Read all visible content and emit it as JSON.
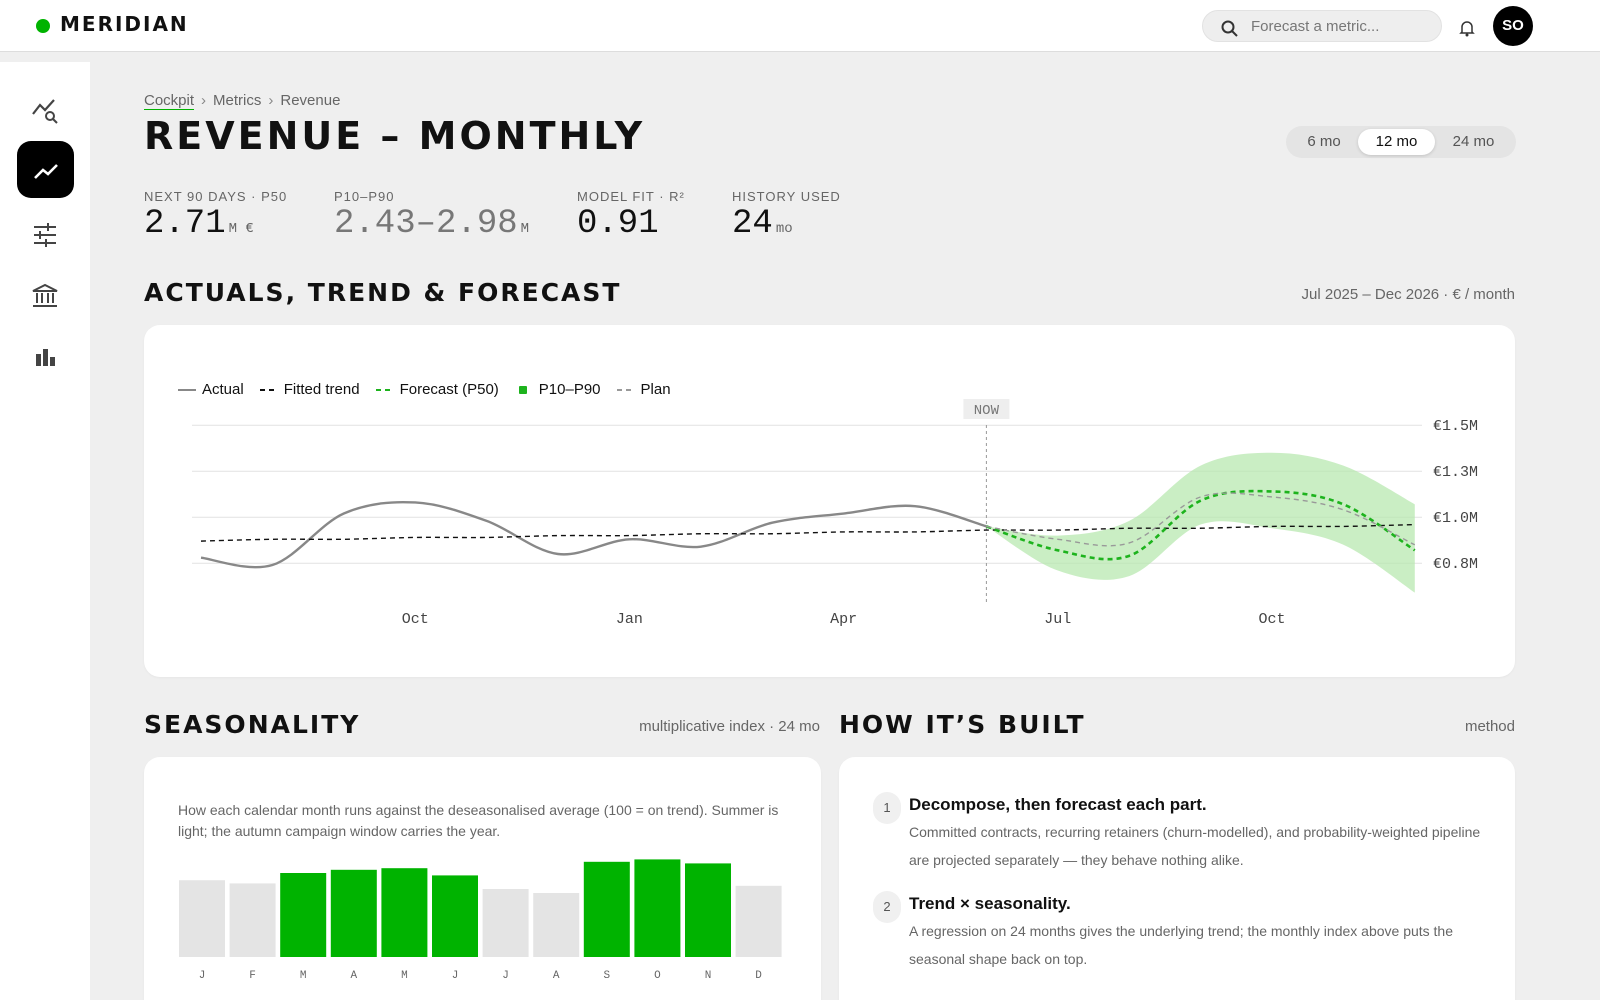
{
  "header": {
    "brand": "MERIDIAN",
    "search_placeholder": "Forecast a metric...",
    "avatar": "SO"
  },
  "breadcrumb": [
    "Cockpit",
    "Metrics",
    "Revenue"
  ],
  "page_title": "REVENUE – MONTHLY",
  "ranges": [
    "6 mo",
    "12 mo",
    "24 mo"
  ],
  "kpis": [
    {
      "label": "NEXT 90 DAYS · P50",
      "value": 2.71,
      "unit": "M €"
    },
    {
      "label": "P10–P90",
      "value": "2.43–2.98",
      "unit": "M"
    },
    {
      "label": "MODEL FIT · R²",
      "value": 0.91
    },
    {
      "label": "HISTORY USED",
      "value": 24,
      "unit": "mo"
    }
  ],
  "chart_data": [
    {
      "type": "line",
      "title": "ACTUALS, TREND & FORECAST",
      "subtitle": "Jul 2025 – Dec 2026 · € / month",
      "categories": [
        null,
        null,
        null,
        "Oct",
        null,
        null,
        "Jan",
        null,
        null,
        "Apr",
        null,
        null,
        "Jul",
        null,
        null,
        "Oct",
        null,
        null
      ],
      "ylim": [
        0.55,
        1.55
      ],
      "yticks": [
        {
          "value": 0.75,
          "label": "€0.8M"
        },
        {
          "value": 1,
          "label": "€1.0M"
        },
        {
          "value": 1.25,
          "label": "€1.3M"
        },
        {
          "value": 1.5,
          "label": "€1.5M"
        }
      ],
      "grid": true,
      "now": {
        "label": "NOW",
        "index": 11
      },
      "series": [
        {
          "name": "Actual",
          "color": "#888888",
          "style": "solid",
          "values": [
            0.78,
            0.74,
            1.02,
            1.08,
            0.98,
            0.8,
            0.88,
            0.84,
            0.97,
            1.02,
            1.06,
            0.95,
            null,
            null,
            null,
            null,
            null,
            null
          ]
        },
        {
          "name": "Fitted trend",
          "color": "#111111",
          "style": "dashed",
          "values": [
            0.87,
            0.88,
            0.88,
            0.89,
            0.89,
            0.9,
            0.9,
            0.91,
            0.91,
            0.92,
            0.92,
            0.93,
            0.93,
            0.94,
            0.94,
            0.95,
            0.95,
            0.96
          ]
        },
        {
          "name": "Forecast (P50)",
          "color": "#1db31d",
          "style": "dashed",
          "values": [
            null,
            null,
            null,
            null,
            null,
            null,
            null,
            null,
            null,
            null,
            null,
            0.95,
            0.82,
            0.79,
            1.09,
            1.14,
            1.07,
            0.82
          ]
        },
        {
          "name": "P10–P90",
          "color": "#b8e8b0",
          "style": "band",
          "low": [
            null,
            null,
            null,
            null,
            null,
            null,
            null,
            null,
            null,
            null,
            null,
            0.95,
            0.71,
            0.68,
            0.96,
            0.94,
            0.85,
            0.59
          ],
          "high": [
            null,
            null,
            null,
            null,
            null,
            null,
            null,
            null,
            null,
            null,
            null,
            0.95,
            0.9,
            0.98,
            1.28,
            1.35,
            1.28,
            1.07
          ]
        },
        {
          "name": "Plan",
          "color": "#999999",
          "style": "dashed",
          "values": [
            null,
            null,
            null,
            null,
            null,
            null,
            null,
            null,
            null,
            null,
            null,
            0.95,
            0.88,
            0.86,
            1.11,
            1.11,
            1.04,
            0.85
          ]
        }
      ]
    },
    {
      "type": "bar",
      "title": "SEASONALITY",
      "subtitle": "multiplicative index · 24 mo",
      "description": "How each calendar month runs against the deseasonalised average (100 = on trend). Summer is light; the autumn campaign window carries the year.",
      "categories": [
        "J",
        "F",
        "M",
        "A",
        "M",
        "J",
        "J",
        "A",
        "S",
        "O",
        "N",
        "D"
      ],
      "values": [
        96,
        92,
        105,
        109,
        111,
        102,
        85,
        80,
        119,
        122,
        117,
        89
      ],
      "colors": [
        "#e4e4e4",
        "#e4e4e4",
        "#00b300",
        "#00b300",
        "#00b300",
        "#00b300",
        "#e4e4e4",
        "#e4e4e4",
        "#00b300",
        "#00b300",
        "#00b300",
        "#e4e4e4"
      ],
      "ylim": [
        0,
        125
      ]
    }
  ],
  "method": {
    "title": "HOW IT’S BUILT",
    "subtitle": "method",
    "steps": [
      {
        "number": 1,
        "title": "Decompose, then forecast each part.",
        "text": "Committed contracts, recurring retainers (churn-modelled), and probability-weighted pipeline are projected separately — they behave nothing alike."
      },
      {
        "number": 2,
        "title": "Trend × seasonality.",
        "text": "A regression on 24 months gives the underlying trend; the monthly index above puts the seasonal shape back on top."
      }
    ]
  }
}
